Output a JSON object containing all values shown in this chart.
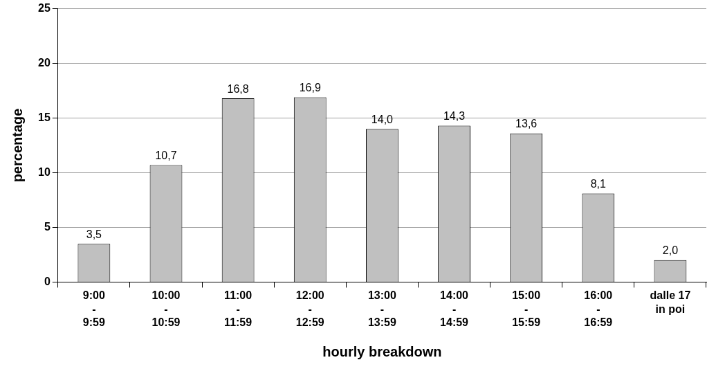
{
  "chart_data": {
    "type": "bar",
    "xlabel": "hourly breakdown",
    "ylabel": "percentage",
    "categories": [
      "9:00\n-\n9:59",
      "10:00\n-\n10:59",
      "11:00\n-\n11:59",
      "12:00\n-\n12:59",
      "13:00\n-\n13:59",
      "14:00\n-\n14:59",
      "15:00\n-\n15:59",
      "16:00\n-\n16:59",
      "dalle 17\nin poi"
    ],
    "values": [
      3.5,
      10.7,
      16.8,
      16.9,
      14.0,
      14.3,
      13.6,
      8.1,
      2.0
    ],
    "value_labels": [
      "3,5",
      "10,7",
      "16,8",
      "16,9",
      "14,0",
      "14,3",
      "13,6",
      "8,1",
      "2,0"
    ],
    "color": "#c0c0c0",
    "ylim": [
      0,
      25
    ],
    "yticks": [
      0,
      5,
      10,
      15,
      20,
      25
    ],
    "grid": "y",
    "legend": false
  }
}
